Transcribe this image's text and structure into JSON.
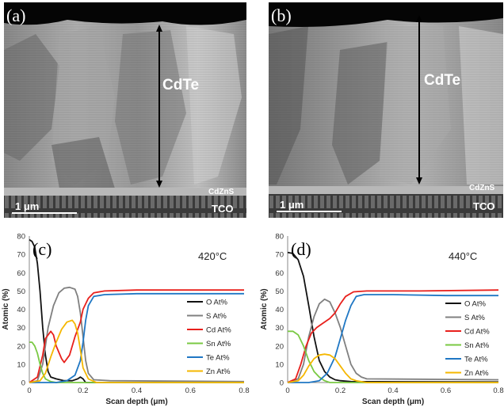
{
  "panels": {
    "a": {
      "label": "(a)",
      "layer_main": "CdTe",
      "layer_buffer": "CdZnS",
      "layer_substrate": "TCO",
      "scale_bar": "1 μm"
    },
    "b": {
      "label": "(b)",
      "layer_main": "CdTe",
      "layer_buffer": "CdZnS",
      "layer_substrate": "TCO",
      "scale_bar": "1 μm"
    }
  },
  "chart_data": [
    {
      "type": "line",
      "panel_label": "(c)",
      "annotation": "420°C",
      "xlabel": "Scan depth (μm)",
      "ylabel": "Atomic (%)",
      "xlim": [
        0,
        0.8
      ],
      "ylim": [
        0,
        80
      ],
      "xticks": [
        "0",
        "0.2",
        "0.4",
        "0.6",
        "0.8"
      ],
      "yticks": [
        "0",
        "10",
        "20",
        "30",
        "40",
        "50",
        "60",
        "70",
        "80"
      ],
      "grid": false,
      "legend_position": "right",
      "series": [
        {
          "name": "O At%",
          "color": "#111111",
          "points": [
            [
              0,
              78
            ],
            [
              0.01,
              77
            ],
            [
              0.02,
              74
            ],
            [
              0.03,
              65
            ],
            [
              0.04,
              50
            ],
            [
              0.05,
              30
            ],
            [
              0.06,
              15
            ],
            [
              0.07,
              6
            ],
            [
              0.08,
              3
            ],
            [
              0.1,
              2
            ],
            [
              0.13,
              1
            ],
            [
              0.16,
              1
            ],
            [
              0.18,
              2
            ],
            [
              0.19,
              3
            ],
            [
              0.2,
              2
            ],
            [
              0.21,
              0
            ],
            [
              0.8,
              0
            ]
          ]
        },
        {
          "name": "S At%",
          "color": "#808080",
          "points": [
            [
              0,
              0
            ],
            [
              0.03,
              1
            ],
            [
              0.05,
              10
            ],
            [
              0.07,
              30
            ],
            [
              0.09,
              42
            ],
            [
              0.11,
              49
            ],
            [
              0.13,
              51.5
            ],
            [
              0.15,
              52
            ],
            [
              0.17,
              51
            ],
            [
              0.18,
              47
            ],
            [
              0.19,
              38
            ],
            [
              0.2,
              25
            ],
            [
              0.21,
              12
            ],
            [
              0.22,
              5
            ],
            [
              0.24,
              1.5
            ],
            [
              0.3,
              1
            ],
            [
              0.8,
              0.5
            ]
          ]
        },
        {
          "name": "Cd At%",
          "color": "#e8201c",
          "points": [
            [
              0,
              0
            ],
            [
              0.03,
              3
            ],
            [
              0.05,
              15
            ],
            [
              0.06,
              24
            ],
            [
              0.08,
              28
            ],
            [
              0.09,
              26
            ],
            [
              0.1,
              20
            ],
            [
              0.12,
              13
            ],
            [
              0.13,
              11
            ],
            [
              0.15,
              15
            ],
            [
              0.17,
              25
            ],
            [
              0.19,
              33
            ],
            [
              0.2,
              40
            ],
            [
              0.22,
              46
            ],
            [
              0.24,
              49
            ],
            [
              0.28,
              50
            ],
            [
              0.4,
              50.5
            ],
            [
              0.6,
              50.5
            ],
            [
              0.8,
              50.5
            ]
          ]
        },
        {
          "name": "Sn At%",
          "color": "#7ac943",
          "points": [
            [
              0,
              22
            ],
            [
              0.01,
              22
            ],
            [
              0.02,
              20
            ],
            [
              0.03,
              16
            ],
            [
              0.04,
              10
            ],
            [
              0.05,
              5
            ],
            [
              0.06,
              2
            ],
            [
              0.08,
              0.5
            ],
            [
              0.1,
              0
            ],
            [
              0.8,
              0
            ]
          ]
        },
        {
          "name": "Te At%",
          "color": "#1f77c4",
          "points": [
            [
              0,
              0
            ],
            [
              0.1,
              0
            ],
            [
              0.14,
              1
            ],
            [
              0.17,
              4
            ],
            [
              0.19,
              12
            ],
            [
              0.2,
              22
            ],
            [
              0.21,
              34
            ],
            [
              0.22,
              42
            ],
            [
              0.24,
              47
            ],
            [
              0.28,
              48
            ],
            [
              0.4,
              48.5
            ],
            [
              0.6,
              48.5
            ],
            [
              0.8,
              48.5
            ]
          ]
        },
        {
          "name": "Zn At%",
          "color": "#f5b700",
          "points": [
            [
              0,
              0
            ],
            [
              0.04,
              1
            ],
            [
              0.06,
              5
            ],
            [
              0.08,
              14
            ],
            [
              0.1,
              22
            ],
            [
              0.12,
              29
            ],
            [
              0.14,
              33
            ],
            [
              0.16,
              34
            ],
            [
              0.17,
              32
            ],
            [
              0.18,
              27
            ],
            [
              0.19,
              18
            ],
            [
              0.2,
              8
            ],
            [
              0.22,
              2
            ],
            [
              0.25,
              0
            ],
            [
              0.8,
              0
            ]
          ]
        }
      ]
    },
    {
      "type": "line",
      "panel_label": "(d)",
      "annotation": "440°C",
      "xlabel": "Scan depth (μm)",
      "ylabel": "Atomic (%)",
      "xlim": [
        0,
        0.8
      ],
      "ylim": [
        0,
        80
      ],
      "xticks": [
        "0",
        "0.2",
        "0.4",
        "0.6",
        "0.8"
      ],
      "yticks": [
        "0",
        "10",
        "20",
        "30",
        "40",
        "50",
        "60",
        "70",
        "80"
      ],
      "grid": false,
      "legend_position": "right",
      "series": [
        {
          "name": "O At%",
          "color": "#111111",
          "points": [
            [
              0,
              71
            ],
            [
              0.02,
              70.5
            ],
            [
              0.04,
              67
            ],
            [
              0.06,
              58
            ],
            [
              0.08,
              42
            ],
            [
              0.1,
              25
            ],
            [
              0.12,
              12
            ],
            [
              0.14,
              6
            ],
            [
              0.16,
              3
            ],
            [
              0.18,
              1.5
            ],
            [
              0.2,
              1
            ],
            [
              0.24,
              0.5
            ],
            [
              0.8,
              0.3
            ]
          ]
        },
        {
          "name": "S At%",
          "color": "#808080",
          "points": [
            [
              0,
              0
            ],
            [
              0.04,
              2
            ],
            [
              0.06,
              10
            ],
            [
              0.08,
              25
            ],
            [
              0.1,
              36
            ],
            [
              0.12,
              43
            ],
            [
              0.14,
              45.5
            ],
            [
              0.16,
              44
            ],
            [
              0.18,
              38
            ],
            [
              0.2,
              30
            ],
            [
              0.22,
              20
            ],
            [
              0.24,
              10
            ],
            [
              0.26,
              5
            ],
            [
              0.28,
              3
            ],
            [
              0.3,
              2
            ],
            [
              0.8,
              1.5
            ]
          ]
        },
        {
          "name": "Cd At%",
          "color": "#e8201c",
          "points": [
            [
              0,
              0
            ],
            [
              0.03,
              2
            ],
            [
              0.05,
              10
            ],
            [
              0.07,
              20
            ],
            [
              0.09,
              27
            ],
            [
              0.11,
              30
            ],
            [
              0.13,
              32
            ],
            [
              0.16,
              35
            ],
            [
              0.18,
              38
            ],
            [
              0.2,
              43
            ],
            [
              0.22,
              47
            ],
            [
              0.25,
              49.5
            ],
            [
              0.3,
              50
            ],
            [
              0.5,
              50
            ],
            [
              0.8,
              50.5
            ]
          ]
        },
        {
          "name": "Sn At%",
          "color": "#7ac943",
          "points": [
            [
              0,
              28
            ],
            [
              0.02,
              28
            ],
            [
              0.04,
              26
            ],
            [
              0.06,
              20
            ],
            [
              0.08,
              12
            ],
            [
              0.1,
              6
            ],
            [
              0.12,
              3
            ],
            [
              0.14,
              1
            ],
            [
              0.16,
              0
            ],
            [
              0.8,
              0
            ]
          ]
        },
        {
          "name": "Te At%",
          "color": "#1f77c4",
          "points": [
            [
              0,
              0
            ],
            [
              0.08,
              0
            ],
            [
              0.12,
              1
            ],
            [
              0.15,
              5
            ],
            [
              0.18,
              14
            ],
            [
              0.2,
              24
            ],
            [
              0.22,
              34
            ],
            [
              0.24,
              42
            ],
            [
              0.26,
              47
            ],
            [
              0.29,
              48
            ],
            [
              0.4,
              48
            ],
            [
              0.6,
              47.5
            ],
            [
              0.8,
              47.5
            ]
          ]
        },
        {
          "name": "Zn At%",
          "color": "#f5b700",
          "points": [
            [
              0,
              0
            ],
            [
              0.04,
              1
            ],
            [
              0.06,
              4
            ],
            [
              0.08,
              9
            ],
            [
              0.1,
              13
            ],
            [
              0.12,
              15
            ],
            [
              0.14,
              15.5
            ],
            [
              0.16,
              15
            ],
            [
              0.18,
              13
            ],
            [
              0.2,
              9
            ],
            [
              0.22,
              5
            ],
            [
              0.24,
              2
            ],
            [
              0.26,
              1
            ],
            [
              0.3,
              0
            ],
            [
              0.8,
              0
            ]
          ]
        }
      ]
    }
  ]
}
